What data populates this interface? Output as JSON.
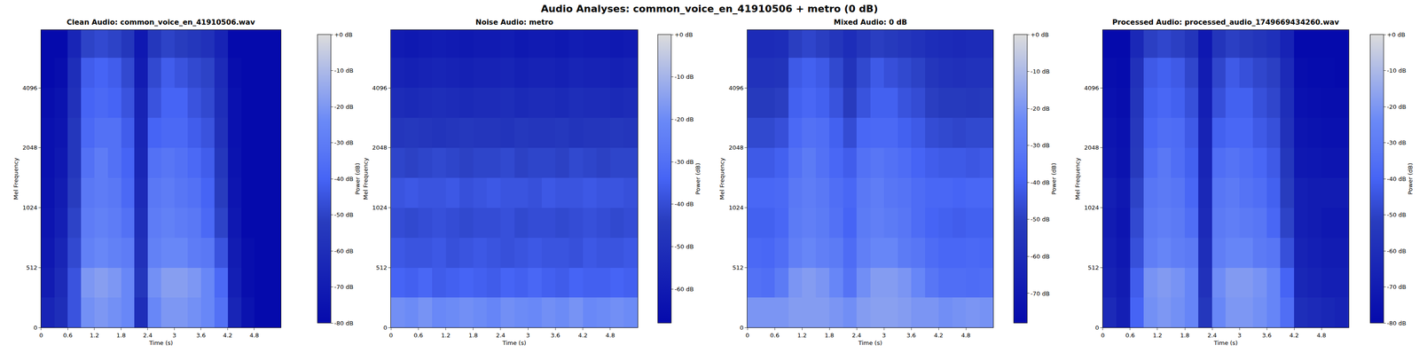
{
  "title": "Audio Analyses: common_voice_en_41910506 + metro (0 dB)",
  "chart_data": [
    {
      "type": "heatmap",
      "title": "Clean Audio: common_voice_en_41910506.wav",
      "x_label": "Time (s)",
      "y_label": "Mel Frequency",
      "colorbar_label": "Power (dB)",
      "xlim": [
        0,
        5.4
      ],
      "xticks": [
        0,
        0.6,
        1.2,
        1.8,
        2.4,
        3,
        3.6,
        4.2,
        4.8
      ],
      "ylim": [
        0,
        8000
      ],
      "yticks": [
        0,
        512,
        1024,
        2048,
        4096
      ],
      "zlim": [
        -80,
        0
      ],
      "zticks": [
        {
          "value": 0,
          "label": "+0 dB"
        },
        {
          "value": -10,
          "label": "-10 dB"
        },
        {
          "value": -20,
          "label": "-20 dB"
        },
        {
          "value": -30,
          "label": "-30 dB"
        },
        {
          "value": -40,
          "label": "-40 dB"
        },
        {
          "value": -50,
          "label": "-50 dB"
        },
        {
          "value": -60,
          "label": "-60 dB"
        },
        {
          "value": -70,
          "label": "-70 dB"
        },
        {
          "value": -80,
          "label": "-80 dB"
        }
      ],
      "x": [
        0.15,
        0.45,
        0.75,
        1.05,
        1.35,
        1.65,
        1.95,
        2.25,
        2.55,
        2.85,
        3.15,
        3.45,
        3.75,
        4.05,
        4.35,
        4.65,
        4.95,
        5.25
      ],
      "y": [
        128,
        384,
        609,
        861,
        1218,
        1722,
        2435,
        3444,
        4871,
        6889
      ],
      "z": [
        [
          -65,
          -60,
          -45,
          -22,
          -20,
          -22,
          -25,
          -60,
          -25,
          -20,
          -20,
          -22,
          -25,
          -35,
          -65,
          -75,
          -80,
          -80
        ],
        [
          -70,
          -62,
          -45,
          -20,
          -18,
          -20,
          -25,
          -55,
          -22,
          -18,
          -18,
          -20,
          -25,
          -38,
          -68,
          -78,
          -80,
          -80
        ],
        [
          -72,
          -65,
          -48,
          -28,
          -25,
          -28,
          -30,
          -58,
          -28,
          -25,
          -25,
          -30,
          -32,
          -45,
          -70,
          -78,
          -80,
          -80
        ],
        [
          -74,
          -68,
          -50,
          -30,
          -28,
          -30,
          -35,
          -60,
          -30,
          -28,
          -30,
          -32,
          -38,
          -50,
          -72,
          -80,
          -80,
          -80
        ],
        [
          -75,
          -70,
          -52,
          -32,
          -30,
          -32,
          -38,
          -62,
          -32,
          -30,
          -33,
          -35,
          -40,
          -52,
          -74,
          -80,
          -80,
          -80
        ],
        [
          -76,
          -72,
          -55,
          -35,
          -30,
          -35,
          -40,
          -64,
          -35,
          -33,
          -35,
          -38,
          -42,
          -55,
          -75,
          -80,
          -80,
          -80
        ],
        [
          -76,
          -74,
          -55,
          -38,
          -35,
          -35,
          -42,
          -65,
          -40,
          -38,
          -38,
          -42,
          -45,
          -58,
          -76,
          -80,
          -80,
          -80
        ],
        [
          -78,
          -75,
          -58,
          -40,
          -38,
          -40,
          -45,
          -66,
          -45,
          -40,
          -40,
          -45,
          -48,
          -60,
          -76,
          -80,
          -80,
          -80
        ],
        [
          -80,
          -78,
          -60,
          -42,
          -40,
          -42,
          -48,
          -70,
          -48,
          -42,
          -45,
          -48,
          -50,
          -62,
          -78,
          -80,
          -80,
          -80
        ],
        [
          -80,
          -80,
          -65,
          -50,
          -48,
          -50,
          -55,
          -72,
          -55,
          -50,
          -52,
          -55,
          -58,
          -66,
          -80,
          -80,
          -80,
          -80
        ]
      ]
    },
    {
      "type": "heatmap",
      "title": "Noise Audio: metro",
      "x_label": "Time (s)",
      "y_label": "Mel Frequency",
      "colorbar_label": "Power (dB)",
      "xlim": [
        0,
        5.4
      ],
      "xticks": [
        0,
        0.6,
        1.2,
        1.8,
        2.4,
        3,
        3.6,
        4.2,
        4.8
      ],
      "ylim": [
        0,
        8000
      ],
      "yticks": [
        0,
        512,
        1024,
        2048,
        4096
      ],
      "zlim": [
        -68,
        0
      ],
      "zticks": [
        {
          "value": 0,
          "label": "+0 dB"
        },
        {
          "value": -10,
          "label": "-10 dB"
        },
        {
          "value": -20,
          "label": "-20 dB"
        },
        {
          "value": -30,
          "label": "-30 dB"
        },
        {
          "value": -40,
          "label": "-40 dB"
        },
        {
          "value": -50,
          "label": "-50 dB"
        },
        {
          "value": -60,
          "label": "-60 dB"
        }
      ],
      "x": [
        0.15,
        0.45,
        0.75,
        1.05,
        1.35,
        1.65,
        1.95,
        2.25,
        2.55,
        2.85,
        3.15,
        3.45,
        3.75,
        4.05,
        4.35,
        4.65,
        4.95,
        5.25
      ],
      "y": [
        128,
        384,
        609,
        861,
        1218,
        1722,
        2435,
        3444,
        4871,
        6889
      ],
      "z": [
        [
          -19,
          -20,
          -18,
          -21,
          -20,
          -19,
          -20,
          -22,
          -19,
          -20,
          -21,
          -19,
          -20,
          -18,
          -21,
          -20,
          -19,
          -20
        ],
        [
          -34,
          -35,
          -33,
          -36,
          -35,
          -34,
          -35,
          -36,
          -34,
          -35,
          -33,
          -35,
          -36,
          -34,
          -35,
          -35,
          -34,
          -35
        ],
        [
          -37,
          -38,
          -38,
          -37,
          -39,
          -38,
          -37,
          -38,
          -39,
          -38,
          -37,
          -38,
          -38,
          -39,
          -37,
          -38,
          -38,
          -37
        ],
        [
          -40,
          -41,
          -40,
          -39,
          -40,
          -41,
          -40,
          -40,
          -39,
          -41,
          -40,
          -40,
          -41,
          -40,
          -39,
          -40,
          -41,
          -40
        ],
        [
          -38,
          -37,
          -38,
          -38,
          -37,
          -39,
          -38,
          -37,
          -38,
          -38,
          -39,
          -37,
          -38,
          -38,
          -37,
          -38,
          -38,
          -39
        ],
        [
          -42,
          -43,
          -42,
          -41,
          -42,
          -43,
          -42,
          -42,
          -41,
          -43,
          -42,
          -42,
          -43,
          -41,
          -42,
          -43,
          -42,
          -42
        ],
        [
          -47,
          -46,
          -47,
          -48,
          -47,
          -46,
          -47,
          -47,
          -48,
          -46,
          -47,
          -47,
          -46,
          -48,
          -47,
          -47,
          -46,
          -47
        ],
        [
          -52,
          -53,
          -52,
          -51,
          -52,
          -53,
          -52,
          -52,
          -51,
          -53,
          -52,
          -52,
          -53,
          -51,
          -52,
          -52,
          -53,
          -52
        ],
        [
          -56,
          -57,
          -56,
          -55,
          -56,
          -57,
          -56,
          -56,
          -55,
          -57,
          -56,
          -56,
          -57,
          -55,
          -56,
          -56,
          -57,
          -56
        ],
        [
          -60,
          -61,
          -60,
          -59,
          -60,
          -61,
          -60,
          -60,
          -59,
          -61,
          -60,
          -60,
          -61,
          -59,
          -60,
          -60,
          -61,
          -60
        ]
      ]
    },
    {
      "type": "heatmap",
      "title": "Mixed Audio: 0 dB",
      "x_label": "Time (s)",
      "y_label": "Mel Frequency",
      "colorbar_label": "Power (dB)",
      "xlim": [
        0,
        5.4
      ],
      "xticks": [
        0,
        0.6,
        1.2,
        1.8,
        2.4,
        3,
        3.6,
        4.2,
        4.8
      ],
      "ylim": [
        0,
        8000
      ],
      "yticks": [
        0,
        512,
        1024,
        2048,
        4096
      ],
      "zlim": [
        -78,
        0
      ],
      "zticks": [
        {
          "value": 0,
          "label": "+0 dB"
        },
        {
          "value": -10,
          "label": "-10 dB"
        },
        {
          "value": -20,
          "label": "-20 dB"
        },
        {
          "value": -30,
          "label": "-30 dB"
        },
        {
          "value": -40,
          "label": "-40 dB"
        },
        {
          "value": -50,
          "label": "-50 dB"
        },
        {
          "value": -60,
          "label": "-60 dB"
        },
        {
          "value": -70,
          "label": "-70 dB"
        }
      ],
      "x": [
        0.15,
        0.45,
        0.75,
        1.05,
        1.35,
        1.65,
        1.95,
        2.25,
        2.55,
        2.85,
        3.15,
        3.45,
        3.75,
        4.05,
        4.35,
        4.65,
        4.95,
        5.25
      ],
      "y": [
        128,
        384,
        609,
        861,
        1218,
        1722,
        2435,
        3444,
        4871,
        6889
      ],
      "z": [
        [
          -20,
          -20,
          -20,
          -18,
          -18,
          -18,
          -20,
          -22,
          -18,
          -17,
          -17,
          -18,
          -20,
          -20,
          -22,
          -21,
          -20,
          -21
        ],
        [
          -34,
          -35,
          -30,
          -20,
          -18,
          -20,
          -25,
          -33,
          -22,
          -18,
          -18,
          -20,
          -25,
          -32,
          -35,
          -35,
          -36,
          -35
        ],
        [
          -37,
          -38,
          -35,
          -28,
          -25,
          -28,
          -30,
          -36,
          -28,
          -25,
          -25,
          -30,
          -32,
          -36,
          -38,
          -38,
          -37,
          -38
        ],
        [
          -40,
          -40,
          -38,
          -30,
          -28,
          -30,
          -34,
          -39,
          -30,
          -28,
          -30,
          -32,
          -36,
          -39,
          -40,
          -41,
          -40,
          -40
        ],
        [
          -38,
          -38,
          -37,
          -31,
          -29,
          -31,
          -35,
          -38,
          -31,
          -29,
          -32,
          -33,
          -36,
          -38,
          -38,
          -39,
          -38,
          -38
        ],
        [
          -42,
          -42,
          -40,
          -34,
          -30,
          -34,
          -38,
          -41,
          -34,
          -32,
          -34,
          -36,
          -39,
          -41,
          -42,
          -42,
          -43,
          -42
        ],
        [
          -47,
          -47,
          -45,
          -37,
          -34,
          -35,
          -40,
          -46,
          -38,
          -37,
          -37,
          -40,
          -42,
          -46,
          -47,
          -48,
          -47,
          -47
        ],
        [
          -52,
          -52,
          -50,
          -40,
          -38,
          -40,
          -44,
          -51,
          -44,
          -40,
          -40,
          -44,
          -46,
          -50,
          -52,
          -52,
          -53,
          -52
        ],
        [
          -56,
          -56,
          -55,
          -42,
          -40,
          -42,
          -47,
          -55,
          -47,
          -42,
          -45,
          -47,
          -49,
          -54,
          -56,
          -57,
          -56,
          -56
        ],
        [
          -60,
          -60,
          -59,
          -50,
          -48,
          -50,
          -54,
          -59,
          -54,
          -50,
          -52,
          -54,
          -56,
          -59,
          -60,
          -61,
          -60,
          -60
        ]
      ]
    },
    {
      "type": "heatmap",
      "title": "Processed Audio: processed_audio_1749669434260.wav",
      "x_label": "Time (s)",
      "y_label": "Mel Frequency",
      "colorbar_label": "Power (dB)",
      "xlim": [
        0,
        5.4
      ],
      "xticks": [
        0,
        0.6,
        1.2,
        1.8,
        2.4,
        3,
        3.6,
        4.2,
        4.8
      ],
      "ylim": [
        0,
        8000
      ],
      "yticks": [
        0,
        512,
        1024,
        2048,
        4096
      ],
      "zlim": [
        -80,
        0
      ],
      "zticks": [
        {
          "value": 0,
          "label": "+0 dB"
        },
        {
          "value": -10,
          "label": "-10 dB"
        },
        {
          "value": -20,
          "label": "-20 dB"
        },
        {
          "value": -30,
          "label": "-30 dB"
        },
        {
          "value": -40,
          "label": "-40 dB"
        },
        {
          "value": -50,
          "label": "-50 dB"
        },
        {
          "value": -60,
          "label": "-60 dB"
        },
        {
          "value": -70,
          "label": "-70 dB"
        },
        {
          "value": -80,
          "label": "-80 dB"
        }
      ],
      "x": [
        0.15,
        0.45,
        0.75,
        1.05,
        1.35,
        1.65,
        1.95,
        2.25,
        2.55,
        2.85,
        3.15,
        3.45,
        3.75,
        4.05,
        4.35,
        4.65,
        4.95,
        5.25
      ],
      "y": [
        128,
        384,
        609,
        861,
        1218,
        1722,
        2435,
        3444,
        4871,
        6889
      ],
      "z": [
        [
          -62,
          -68,
          -40,
          -22,
          -20,
          -22,
          -26,
          -55,
          -25,
          -20,
          -20,
          -22,
          -26,
          -36,
          -60,
          -62,
          -64,
          -66
        ],
        [
          -66,
          -70,
          -42,
          -21,
          -19,
          -21,
          -26,
          -58,
          -23,
          -19,
          -19,
          -21,
          -26,
          -40,
          -64,
          -66,
          -68,
          -68
        ],
        [
          -68,
          -72,
          -46,
          -29,
          -26,
          -29,
          -31,
          -60,
          -29,
          -26,
          -26,
          -31,
          -33,
          -46,
          -66,
          -68,
          -70,
          -70
        ],
        [
          -70,
          -74,
          -48,
          -31,
          -29,
          -31,
          -36,
          -62,
          -31,
          -29,
          -31,
          -33,
          -39,
          -50,
          -68,
          -70,
          -72,
          -72
        ],
        [
          -68,
          -72,
          -50,
          -33,
          -31,
          -33,
          -39,
          -63,
          -33,
          -31,
          -34,
          -36,
          -41,
          -52,
          -68,
          -70,
          -70,
          -70
        ],
        [
          -72,
          -75,
          -53,
          -36,
          -32,
          -36,
          -41,
          -65,
          -36,
          -34,
          -36,
          -39,
          -43,
          -55,
          -72,
          -73,
          -74,
          -74
        ],
        [
          -74,
          -76,
          -54,
          -39,
          -36,
          -37,
          -43,
          -66,
          -41,
          -39,
          -39,
          -43,
          -46,
          -58,
          -74,
          -75,
          -76,
          -76
        ],
        [
          -76,
          -78,
          -56,
          -41,
          -39,
          -41,
          -46,
          -68,
          -46,
          -41,
          -41,
          -46,
          -49,
          -60,
          -76,
          -77,
          -78,
          -78
        ],
        [
          -78,
          -79,
          -58,
          -43,
          -41,
          -43,
          -49,
          -70,
          -49,
          -43,
          -46,
          -49,
          -51,
          -62,
          -78,
          -79,
          -79,
          -80
        ],
        [
          -80,
          -80,
          -63,
          -51,
          -49,
          -51,
          -56,
          -72,
          -56,
          -51,
          -53,
          -56,
          -59,
          -66,
          -80,
          -80,
          -80,
          -80
        ]
      ]
    }
  ]
}
